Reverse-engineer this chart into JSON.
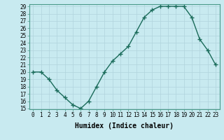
{
  "x": [
    0,
    1,
    2,
    3,
    4,
    5,
    6,
    7,
    8,
    9,
    10,
    11,
    12,
    13,
    14,
    15,
    16,
    17,
    18,
    19,
    20,
    21,
    22,
    23
  ],
  "y": [
    20,
    20,
    19,
    17.5,
    16.5,
    15.5,
    15,
    16,
    18,
    20,
    21.5,
    22.5,
    23.5,
    25.5,
    27.5,
    28.5,
    29,
    29,
    29,
    29,
    27.5,
    24.5,
    23,
    21
  ],
  "line_color": "#1a6b5a",
  "marker": "+",
  "xlabel": "Humidex (Indice chaleur)",
  "ylim": [
    15,
    29
  ],
  "xlim": [
    -0.5,
    23.5
  ],
  "yticks": [
    15,
    16,
    17,
    18,
    19,
    20,
    21,
    22,
    23,
    24,
    25,
    26,
    27,
    28,
    29
  ],
  "xticks": [
    0,
    1,
    2,
    3,
    4,
    5,
    6,
    7,
    8,
    9,
    10,
    11,
    12,
    13,
    14,
    15,
    16,
    17,
    18,
    19,
    20,
    21,
    22,
    23
  ],
  "bg_color": "#c8eaf0",
  "grid_color": "#b0d4dc",
  "tick_label_fontsize": 5.5,
  "xlabel_fontsize": 7,
  "linewidth": 1.0,
  "markersize": 4,
  "markeredgewidth": 1.0
}
